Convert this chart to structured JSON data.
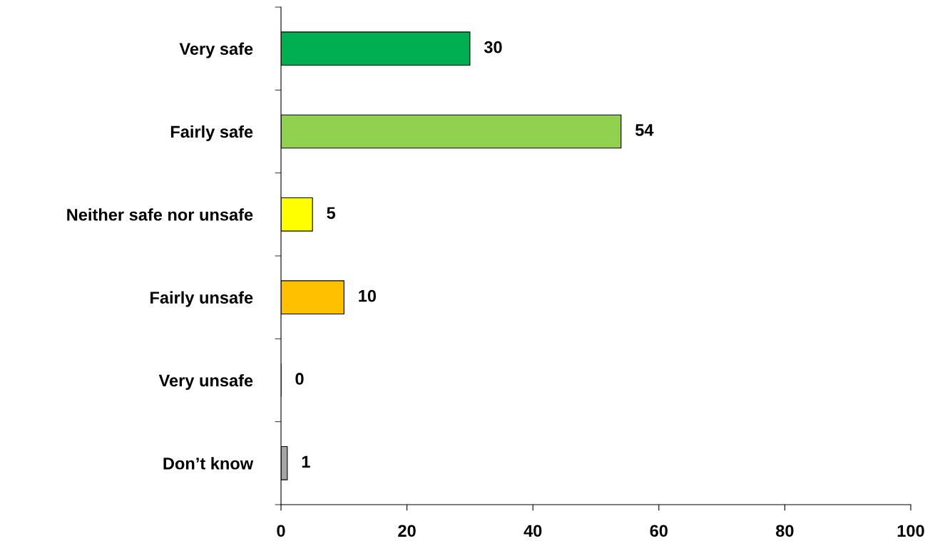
{
  "chart_data": {
    "type": "bar",
    "orientation": "horizontal",
    "categories": [
      "Very safe",
      "Fairly safe",
      "Neither safe nor unsafe",
      "Fairly unsafe",
      "Very unsafe",
      "Don’t know"
    ],
    "values": [
      30,
      54,
      5,
      10,
      0,
      1
    ],
    "colors": [
      "#00b050",
      "#92d050",
      "#ffff00",
      "#ffc000",
      "#ff0000",
      "#a6a6a6"
    ],
    "xlim": [
      0,
      100
    ],
    "xticks": [
      0,
      20,
      40,
      60,
      80,
      100
    ],
    "data_labels": true,
    "grid": false,
    "legend": false
  }
}
